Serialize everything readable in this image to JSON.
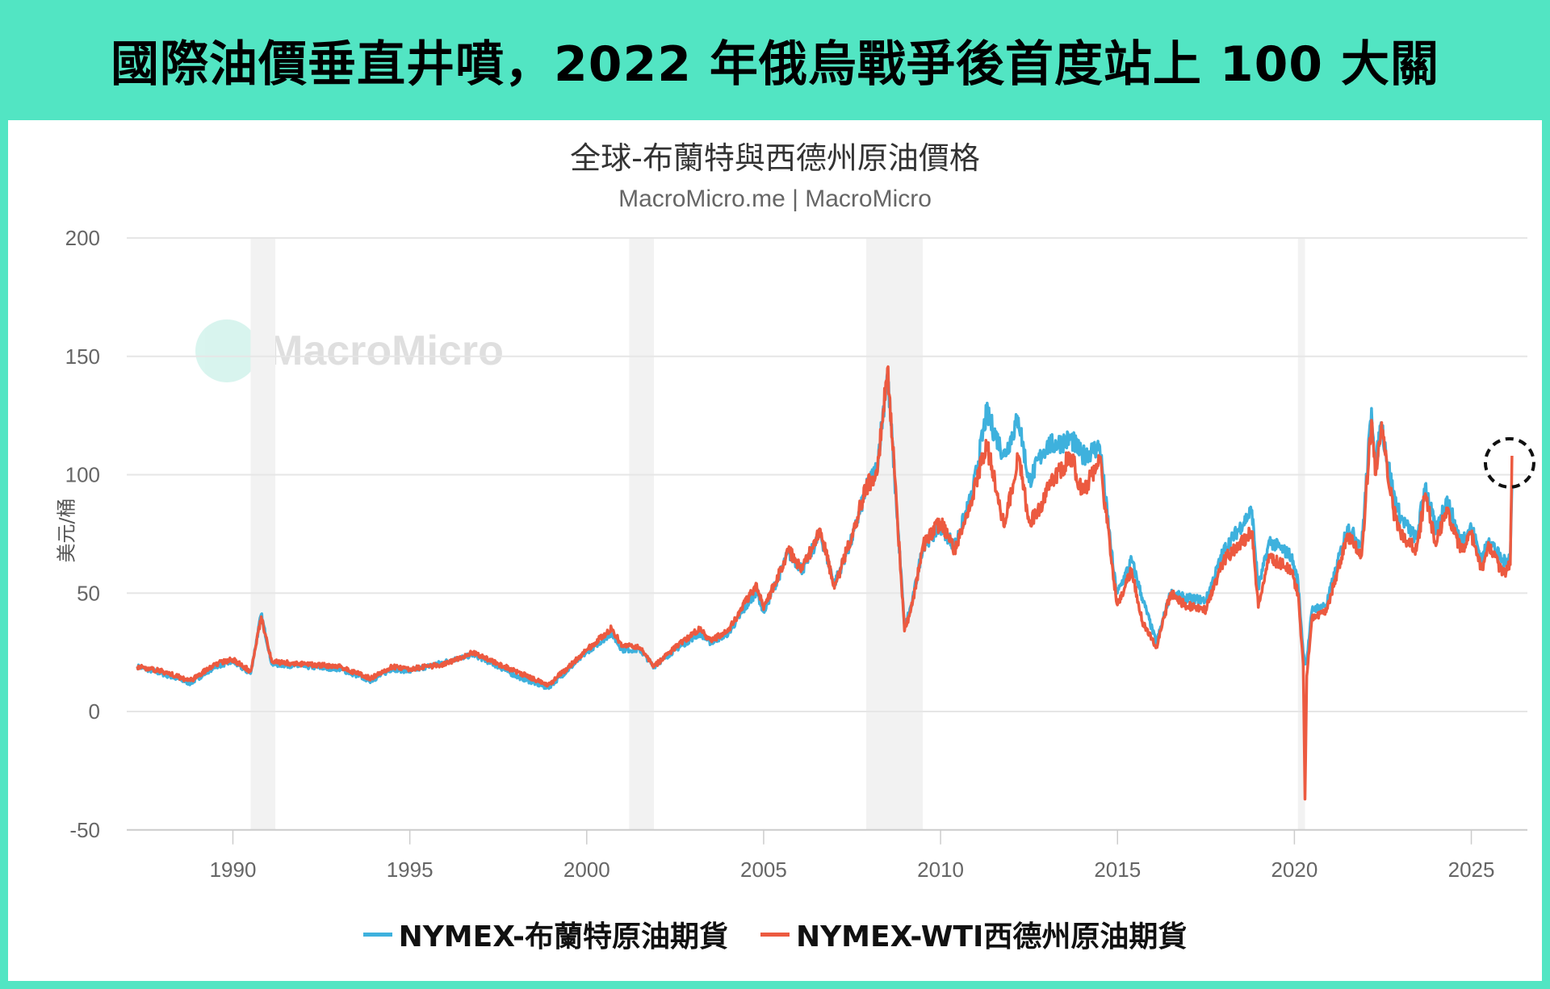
{
  "banner": {
    "title": "國際油價垂直井噴，2022 年俄烏戰爭後首度站上 100 大關"
  },
  "colors": {
    "frame": "#52e5c3",
    "brent": "#3eb1dd",
    "wti": "#ec5a40",
    "recession": "#f2f2f2"
  },
  "watermark": {
    "text": "MacroMicro",
    "icon": "macromicro-logo-icon"
  },
  "chart_data": {
    "type": "line",
    "title": "全球-布蘭特與西德州原油價格",
    "subtitle": "MacroMicro.me | MacroMicro",
    "ylabel": "美元/桶",
    "xlabel": "",
    "ylim": [
      -50,
      200
    ],
    "xlim": [
      1987,
      2026.5
    ],
    "yticks": [
      "200",
      "150",
      "100",
      "50",
      "0",
      "-50"
    ],
    "ytick_values": [
      200,
      150,
      100,
      50,
      0,
      -50
    ],
    "xticks": [
      "1990",
      "1995",
      "2000",
      "2005",
      "2010",
      "2015",
      "2020",
      "2025"
    ],
    "xtick_values": [
      1990,
      1995,
      2000,
      2005,
      2010,
      2015,
      2020,
      2025
    ],
    "grid": true,
    "legend_position": "bottom",
    "recession_bands": [
      [
        1990.5,
        1991.2
      ],
      [
        2001.2,
        2001.9
      ],
      [
        2007.9,
        2009.5
      ],
      [
        2020.1,
        2020.3
      ]
    ],
    "highlight": {
      "type": "dashed-circle",
      "x": 2026.15,
      "y": 105
    },
    "x": [
      1987.3,
      1988,
      1988.8,
      1989.5,
      1990,
      1990.5,
      1990.8,
      1991.1,
      1992,
      1993,
      1993.9,
      1994.5,
      1995,
      1996,
      1996.8,
      1997.5,
      1998,
      1998.9,
      1999.5,
      2000,
      2000.7,
      2001,
      2001.5,
      2001.9,
      2002.5,
      2003.2,
      2003.5,
      2004,
      2004.8,
      2005,
      2005.7,
      2006.1,
      2006.6,
      2007,
      2007.5,
      2007.9,
      2008.2,
      2008.5,
      2008.7,
      2008.98,
      2009.2,
      2009.5,
      2010,
      2010.4,
      2010.9,
      2011.3,
      2011.8,
      2012.2,
      2012.5,
      2012.9,
      2013,
      2013.7,
      2014,
      2014.5,
      2014.9,
      2015,
      2015.4,
      2015.7,
      2016.1,
      2016.5,
      2016.9,
      2017.5,
      2018,
      2018.8,
      2018.98,
      2019.3,
      2019.9,
      2020.1,
      2020.25,
      2020.3,
      2020.35,
      2020.5,
      2020.9,
      2021.5,
      2021.9,
      2022.18,
      2022.3,
      2022.45,
      2022.8,
      2023,
      2023.45,
      2023.7,
      2024,
      2024.3,
      2024.7,
      2025,
      2025.3,
      2025.5,
      2025.9,
      2026.1,
      2026.15
    ],
    "series": [
      {
        "name": "NYMEX-布蘭特原油期貨",
        "color": "#3eb1dd",
        "values": [
          19,
          16,
          12,
          19,
          21,
          16,
          41,
          20,
          19,
          18,
          13,
          18,
          17,
          21,
          24,
          19,
          15,
          10,
          18,
          25,
          33,
          26,
          26,
          19,
          26,
          33,
          29,
          33,
          51,
          42,
          67,
          60,
          75,
          54,
          73,
          94,
          103,
          143,
          99,
          36,
          46,
          70,
          78,
          70,
          92,
          126,
          108,
          124,
          97,
          110,
          112,
          115,
          108,
          112,
          58,
          50,
          64,
          48,
          29,
          50,
          48,
          47,
          68,
          85,
          52,
          72,
          66,
          55,
          25,
          20,
          22,
          43,
          45,
          78,
          70,
          128,
          104,
          122,
          92,
          82,
          73,
          96,
          76,
          90,
          72,
          78,
          64,
          73,
          63,
          66,
          95
        ]
      },
      {
        "name": "NYMEX-WTI西德州原油期貨",
        "color": "#ec5a40",
        "values": [
          19,
          17,
          13,
          20,
          22,
          17,
          40,
          21,
          20,
          19,
          14,
          19,
          18,
          20,
          25,
          20,
          17,
          11,
          19,
          26,
          35,
          28,
          27,
          19,
          27,
          35,
          30,
          34,
          54,
          43,
          68,
          60,
          77,
          52,
          75,
          95,
          100,
          145,
          100,
          34,
          45,
          70,
          80,
          68,
          90,
          113,
          78,
          108,
          80,
          88,
          95,
          108,
          92,
          106,
          55,
          45,
          60,
          38,
          27,
          50,
          45,
          43,
          64,
          76,
          44,
          65,
          60,
          50,
          20,
          -37,
          15,
          40,
          42,
          75,
          66,
          123,
          100,
          120,
          85,
          75,
          68,
          92,
          70,
          86,
          68,
          75,
          60,
          70,
          58,
          62,
          108
        ]
      }
    ]
  }
}
